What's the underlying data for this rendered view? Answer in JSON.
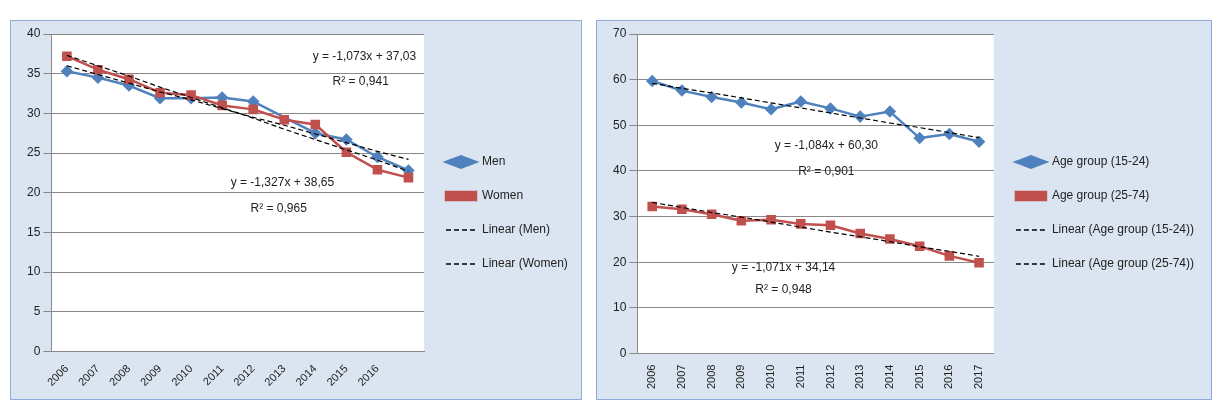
{
  "chart_data": [
    {
      "type": "line",
      "categories": [
        "2006",
        "2007",
        "2008",
        "2009",
        "2010",
        "2011",
        "2012",
        "2013",
        "2014",
        "2015",
        "2016",
        null
      ],
      "series": [
        {
          "name": "Men",
          "color": "#4f81bd",
          "marker": "diamond",
          "values": [
            35.3,
            34.5,
            33.5,
            31.9,
            31.9,
            32.0,
            31.5,
            null,
            27.5,
            26.7,
            24.5,
            22.8
          ]
        },
        {
          "name": "Women",
          "color": "#c0504d",
          "marker": "square",
          "values": [
            37.2,
            35.5,
            34.3,
            32.6,
            32.3,
            31.0,
            30.5,
            29.2,
            28.6,
            25.1,
            22.9,
            21.9
          ]
        },
        {
          "name": "Linear (Men)",
          "type": "line",
          "color": "#000000",
          "marker": "none",
          "line_style": "dashed",
          "values": [
            36.0,
            34.9,
            33.8,
            32.7,
            31.7,
            30.6,
            29.5,
            28.5,
            27.4,
            26.3,
            25.2,
            24.2
          ]
        },
        {
          "name": "Linear (Women)",
          "type": "line",
          "color": "#000000",
          "marker": "none",
          "line_style": "dashed",
          "values": [
            37.3,
            36.0,
            34.7,
            33.3,
            32.0,
            30.7,
            29.4,
            28.0,
            26.7,
            25.4,
            24.1,
            22.7
          ]
        }
      ],
      "ylim": [
        0,
        40
      ],
      "yticks": [
        0,
        5,
        10,
        15,
        20,
        25,
        30,
        35,
        40
      ],
      "grid": "y",
      "legend": "right",
      "annotations": [
        "y = -1,073x + 37,03",
        "R² = 0,941",
        "y = -1,327x + 38,65",
        "R² = 0,965"
      ]
    },
    {
      "type": "line",
      "categories": [
        "2006",
        "2007",
        "2008",
        "2009",
        "2010",
        "2011",
        "2012",
        "2013",
        "2014",
        "2015",
        "2016",
        "2017"
      ],
      "series": [
        {
          "name": "Age group (15-24)",
          "color": "#4f81bd",
          "marker": "diamond",
          "values": [
            59.7,
            57.6,
            56.2,
            55.0,
            53.5,
            55.2,
            53.7,
            51.9,
            53.0,
            47.2,
            48.1,
            46.4
          ]
        },
        {
          "name": "Age group (25-74)",
          "color": "#c0504d",
          "marker": "square",
          "values": [
            32.2,
            31.6,
            30.5,
            29.1,
            29.3,
            28.4,
            28.1,
            26.3,
            25.1,
            23.5,
            21.4,
            19.9
          ]
        },
        {
          "name": "Linear (Age group (15-24))",
          "type": "line",
          "color": "#000000",
          "marker": "none",
          "line_style": "dashed",
          "values": [
            59.2,
            58.1,
            57.1,
            56.0,
            54.9,
            53.8,
            52.7,
            51.6,
            50.5,
            49.5,
            48.4,
            47.3
          ]
        },
        {
          "name": "Linear (Age group (25-74))",
          "type": "line",
          "color": "#000000",
          "marker": "none",
          "line_style": "dashed",
          "values": [
            33.1,
            32.0,
            30.9,
            29.9,
            28.8,
            27.7,
            26.6,
            25.6,
            24.5,
            23.4,
            22.4,
            21.3
          ]
        }
      ],
      "ylim": [
        0,
        70
      ],
      "yticks": [
        0,
        10,
        20,
        30,
        40,
        50,
        60,
        70
      ],
      "grid": "y",
      "legend": "right",
      "annotations": [
        "y = -1,084x + 60,30",
        "R² = 0,901",
        "y = -1,071x + 34,14",
        "R² = 0,948"
      ]
    }
  ]
}
